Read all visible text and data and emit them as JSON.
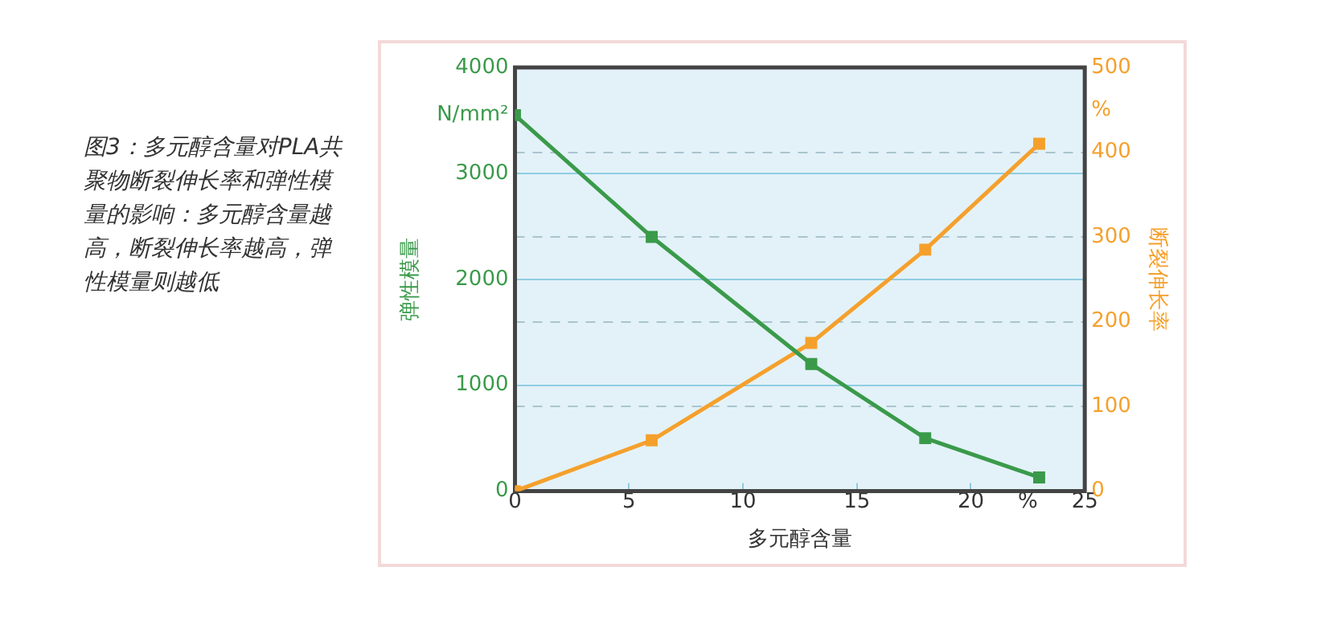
{
  "chart_data": {
    "type": "line",
    "title": "图3：多元醇含量对PLA共聚物断裂伸长率和弹性模量的影响：多元醇含量越高，断裂伸长率越高，弹性模量则越低",
    "xlabel": "多元醇含量",
    "ylabel": "弹性模量",
    "y2label": "断裂伸长率",
    "x": [
      0,
      6,
      13,
      18,
      23
    ],
    "series": [
      {
        "color": "#3a9a4a",
        "values": [
          3550,
          2400,
          1200,
          500,
          130
        ]
      },
      {
        "color": "#f5a02c",
        "axis": "y2",
        "values": [
          0,
          60,
          175,
          285,
          410
        ]
      }
    ],
    "xlim": [
      0,
      25
    ],
    "xticks": [
      0,
      5,
      10,
      15,
      20,
      {
        "value": 22.5,
        "label": "%"
      },
      25
    ],
    "ylim": [
      0,
      4000
    ],
    "yticks": [
      0,
      1000,
      2000,
      3000,
      {
        "value": 3550,
        "label": "N/mm²"
      },
      4000
    ],
    "y2lim": [
      0,
      500
    ],
    "y2ticks": [
      0,
      100,
      200,
      300,
      400,
      {
        "value": 450,
        "label": "%"
      },
      500
    ],
    "grid": true,
    "marker": "square",
    "line_style": "solid"
  }
}
